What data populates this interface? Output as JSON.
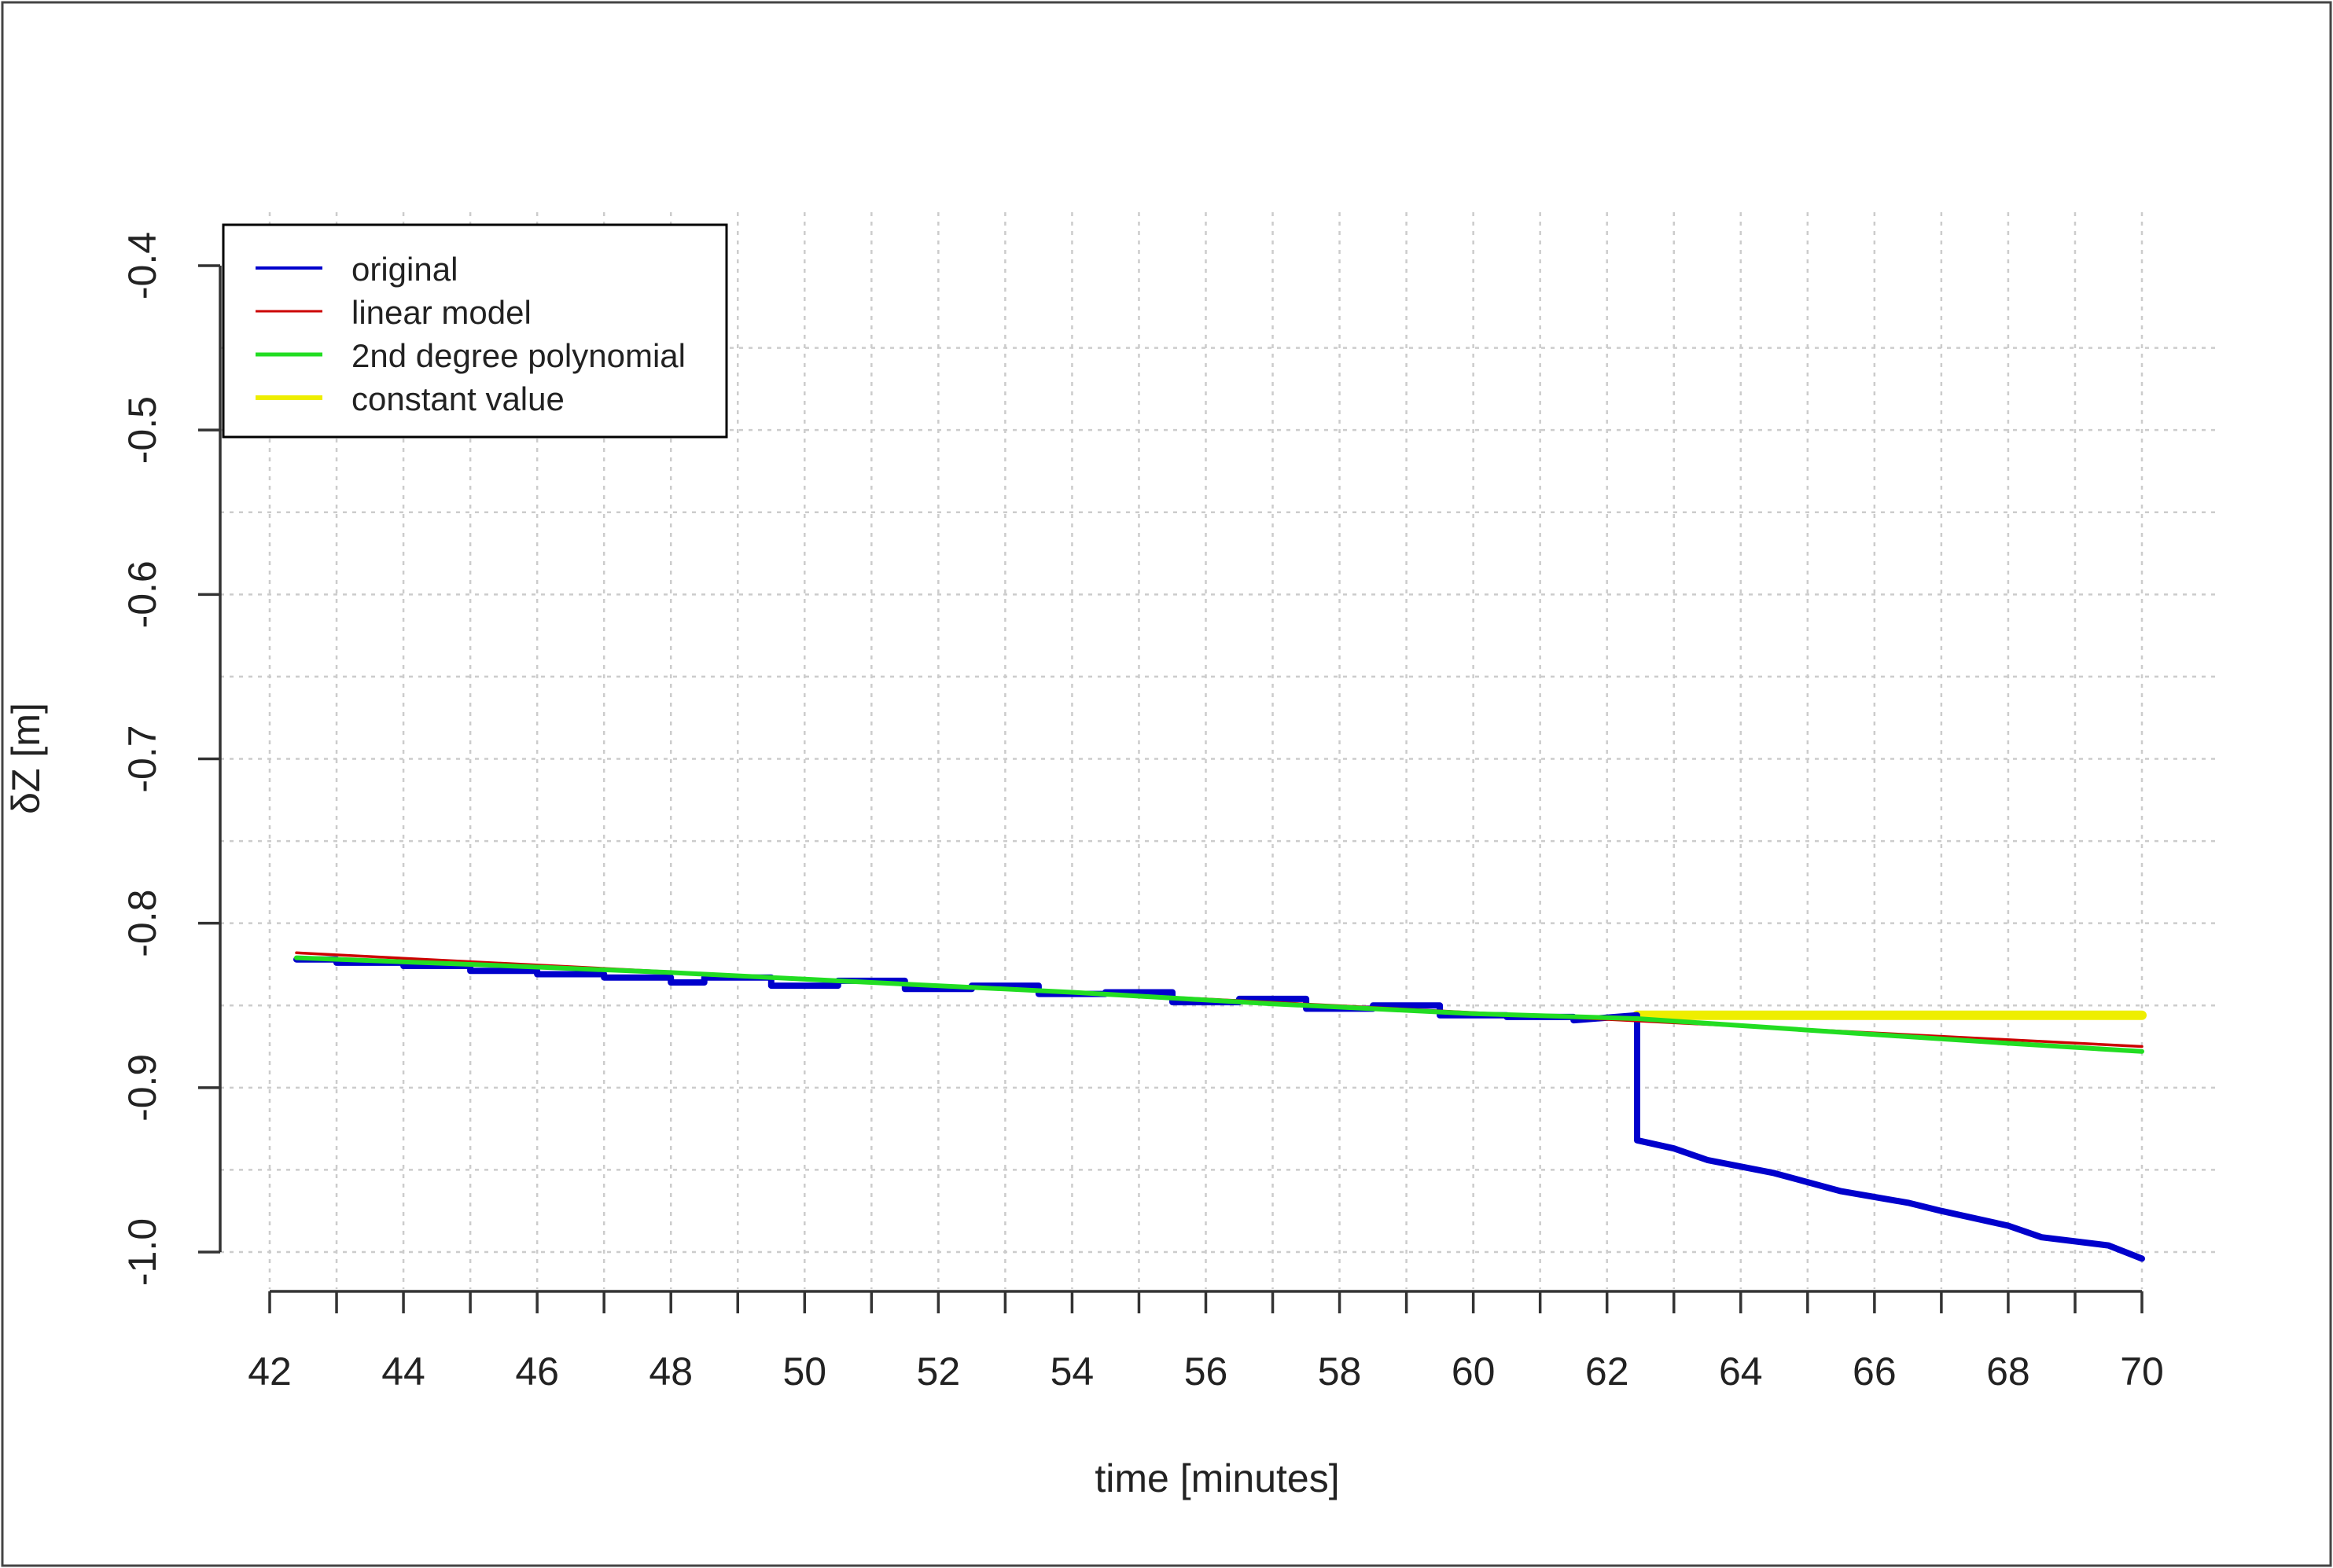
{
  "chart_data": {
    "type": "line",
    "title": "",
    "xlabel": "time [minutes]",
    "ylabel": "δZ [m]",
    "xlim": [
      42,
      70
    ],
    "ylim": [
      -1.0,
      -0.4
    ],
    "x_ticks": [
      42,
      44,
      46,
      48,
      50,
      52,
      54,
      56,
      58,
      60,
      62,
      64,
      66,
      68,
      70
    ],
    "x_tick_labels": [
      "42",
      "44",
      "46",
      "48",
      "50",
      "52",
      "54",
      "56",
      "58",
      "60",
      "62",
      "64",
      "66",
      "68",
      "70"
    ],
    "y_ticks": [
      -1.0,
      -0.9,
      -0.8,
      -0.7,
      -0.6,
      -0.5,
      -0.4
    ],
    "y_tick_labels": [
      "-1.0",
      "-0.9",
      "-0.8",
      "-0.7",
      "-0.6",
      "-0.5",
      "-0.4"
    ],
    "grid": true,
    "legend_position": "top-left",
    "series": [
      {
        "name": "original",
        "color": "#0000cc",
        "x": [
          42.4,
          43.0,
          43.0,
          44.0,
          44.0,
          45.0,
          45.0,
          46.0,
          46.0,
          47.0,
          47.0,
          48.0,
          48.0,
          48.5,
          48.5,
          49.5,
          49.5,
          50.5,
          50.5,
          51.5,
          51.5,
          52.5,
          52.5,
          53.5,
          53.5,
          54.5,
          54.5,
          55.5,
          55.5,
          56.5,
          56.5,
          57.5,
          57.5,
          58.5,
          58.5,
          59.5,
          59.5,
          60.5,
          60.5,
          61.5,
          61.5,
          62.45,
          62.45,
          63.0,
          63.5,
          64.5,
          65.5,
          66.5,
          67.0,
          68.0,
          68.5,
          69.5,
          70.0
        ],
        "y": [
          -0.822,
          -0.822,
          -0.824,
          -0.824,
          -0.826,
          -0.826,
          -0.829,
          -0.829,
          -0.831,
          -0.831,
          -0.833,
          -0.833,
          -0.836,
          -0.836,
          -0.833,
          -0.833,
          -0.838,
          -0.838,
          -0.835,
          -0.835,
          -0.84,
          -0.84,
          -0.838,
          -0.838,
          -0.843,
          -0.843,
          -0.842,
          -0.842,
          -0.848,
          -0.848,
          -0.846,
          -0.846,
          -0.852,
          -0.852,
          -0.85,
          -0.85,
          -0.856,
          -0.856,
          -0.857,
          -0.857,
          -0.859,
          -0.856,
          -0.932,
          -0.937,
          -0.944,
          -0.952,
          -0.963,
          -0.97,
          -0.975,
          -0.984,
          -0.991,
          -0.996,
          -1.004
        ]
      },
      {
        "name": "linear model",
        "color": "#cc0000",
        "x": [
          42.4,
          70.0
        ],
        "y": [
          -0.818,
          -0.875
        ]
      },
      {
        "name": "2nd degree polynomial",
        "color": "#22dd22",
        "x": [
          42.4,
          45,
          48,
          51,
          54,
          57,
          60,
          62.45,
          65,
          68,
          70
        ],
        "y": [
          -0.821,
          -0.825,
          -0.83,
          -0.836,
          -0.842,
          -0.849,
          -0.855,
          -0.858,
          -0.865,
          -0.873,
          -0.878
        ]
      },
      {
        "name": "constant value",
        "color": "#eeee00",
        "x": [
          62.45,
          70.0
        ],
        "y": [
          -0.856,
          -0.856
        ]
      }
    ]
  }
}
